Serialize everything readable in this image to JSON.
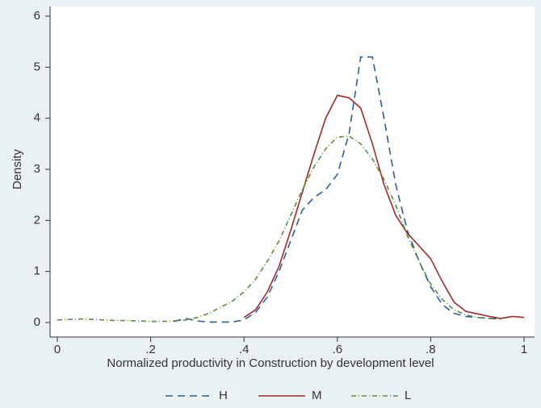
{
  "chart_data": {
    "type": "line",
    "xlabel": "Normalized productivity in Construction by development level",
    "ylabel": "Density",
    "x": [
      0,
      0.025,
      0.05,
      0.075,
      0.1,
      0.125,
      0.15,
      0.175,
      0.2,
      0.225,
      0.25,
      0.275,
      0.3,
      0.325,
      0.35,
      0.375,
      0.4,
      0.425,
      0.45,
      0.475,
      0.5,
      0.525,
      0.55,
      0.575,
      0.6,
      0.625,
      0.65,
      0.675,
      0.7,
      0.725,
      0.75,
      0.775,
      0.8,
      0.825,
      0.85,
      0.875,
      0.9,
      0.925,
      0.95,
      0.975,
      1
    ],
    "series": [
      {
        "name": "H",
        "color": "#2b5f95",
        "dash": "9,6",
        "values": [
          null,
          null,
          null,
          null,
          null,
          null,
          null,
          null,
          null,
          null,
          0.02,
          0.08,
          0.03,
          0.01,
          0.01,
          0.01,
          0.05,
          0.2,
          0.5,
          1.0,
          1.6,
          2.2,
          2.45,
          2.6,
          2.9,
          3.7,
          5.2,
          5.2,
          4.0,
          2.7,
          1.8,
          1.2,
          0.7,
          0.35,
          0.18,
          0.12,
          0.1,
          0.08,
          0.07,
          null,
          null
        ]
      },
      {
        "name": "M",
        "color": "#a3282b",
        "dash": "none",
        "values": [
          null,
          null,
          null,
          null,
          null,
          null,
          null,
          null,
          null,
          null,
          null,
          null,
          null,
          null,
          null,
          null,
          0.1,
          0.25,
          0.6,
          1.1,
          1.8,
          2.55,
          3.3,
          4.0,
          4.45,
          4.4,
          4.2,
          3.5,
          2.7,
          2.1,
          1.75,
          1.5,
          1.25,
          0.8,
          0.4,
          0.22,
          0.17,
          0.12,
          0.08,
          0.12,
          0.1
        ]
      },
      {
        "name": "L",
        "color": "#5e8f3c",
        "dash": "6,3,1,3",
        "values": [
          0.05,
          0.06,
          0.07,
          0.06,
          0.05,
          0.04,
          0.04,
          0.03,
          0.02,
          0.02,
          0.03,
          0.05,
          0.1,
          0.18,
          0.3,
          0.42,
          0.6,
          0.85,
          1.2,
          1.6,
          2.1,
          2.6,
          3.05,
          3.4,
          3.63,
          3.65,
          3.5,
          3.2,
          2.8,
          2.3,
          1.7,
          1.2,
          0.75,
          0.45,
          0.25,
          0.15,
          0.1,
          0.08,
          0.07,
          null,
          null
        ]
      }
    ],
    "xlim": [
      0,
      1
    ],
    "xticks": [
      0,
      {
        "value": 0.2,
        "label": ".2"
      },
      {
        "value": 0.4,
        "label": ".4"
      },
      {
        "value": 0.6,
        "label": ".6"
      },
      {
        "value": 0.8,
        "label": ".8"
      },
      1
    ],
    "ylim": [
      0,
      6
    ],
    "yticks": [
      0,
      1,
      2,
      3,
      4,
      5,
      6
    ]
  }
}
